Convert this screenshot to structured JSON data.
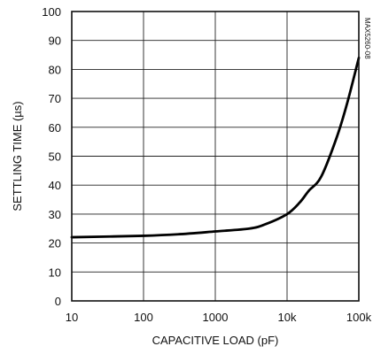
{
  "chart_data": {
    "type": "line",
    "title": "",
    "xlabel": "CAPACITIVE LOAD (pF)",
    "ylabel": "SETTLING TIME (µs)",
    "x_scale": "log",
    "xlim": [
      10,
      100000
    ],
    "ylim": [
      0,
      100
    ],
    "grid": true,
    "x_ticks": [
      10,
      100,
      1000,
      10000,
      100000
    ],
    "x_tick_labels": [
      "10",
      "100",
      "1000",
      "10k",
      "100k"
    ],
    "y_ticks": [
      0,
      10,
      20,
      30,
      40,
      50,
      60,
      70,
      80,
      90,
      100
    ],
    "y_tick_labels": [
      "0",
      "10",
      "20",
      "30",
      "40",
      "50",
      "60",
      "70",
      "80",
      "90",
      "100"
    ],
    "series": [
      {
        "x": [
          10,
          100,
          300,
          1000,
          3000,
          5000,
          10000,
          15000,
          20000,
          30000,
          50000,
          70000,
          100000
        ],
        "y": [
          22,
          22.5,
          23,
          24,
          25,
          26.5,
          30,
          34,
          38,
          43,
          57,
          69,
          84
        ]
      }
    ],
    "annotation": "MAX5260-08"
  }
}
